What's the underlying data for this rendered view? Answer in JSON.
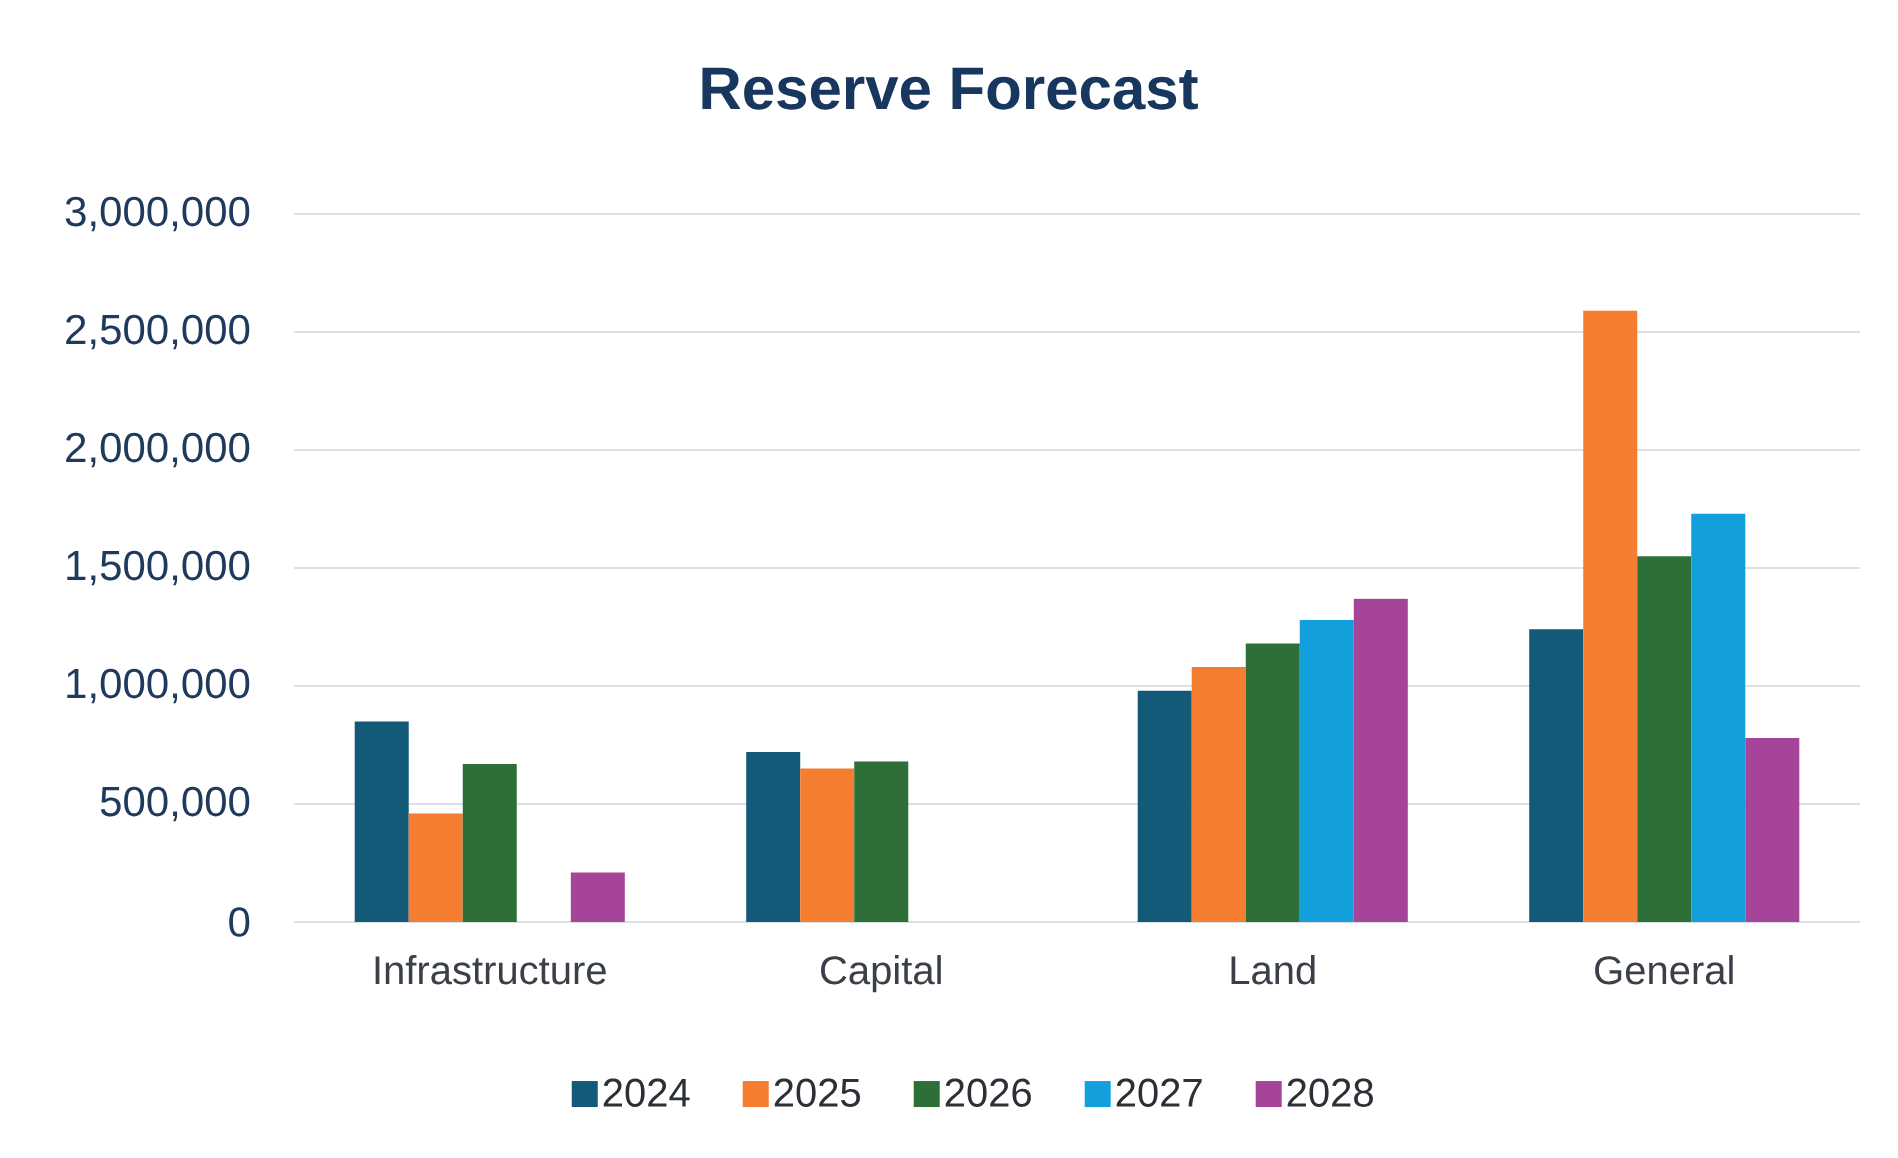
{
  "chart_data": {
    "type": "bar",
    "title": "Reserve Forecast",
    "categories": [
      "Infrastructure",
      "Capital",
      "Land",
      "General"
    ],
    "series": [
      {
        "name": "2024",
        "color": "#125a78",
        "values": [
          850000,
          720000,
          980000,
          1240000
        ]
      },
      {
        "name": "2025",
        "color": "#f47d30",
        "values": [
          460000,
          650000,
          1080000,
          2590000
        ]
      },
      {
        "name": "2026",
        "color": "#2e6e37",
        "values": [
          670000,
          680000,
          1180000,
          1550000
        ]
      },
      {
        "name": "2027",
        "color": "#139fdc",
        "values": [
          null,
          null,
          1280000,
          1730000
        ]
      },
      {
        "name": "2028",
        "color": "#a6449a",
        "values": [
          210000,
          null,
          1370000,
          780000
        ]
      }
    ],
    "ylim": [
      0,
      3000000
    ],
    "yticks": [
      0,
      {
        "value": 500000,
        "label": "500,000"
      },
      {
        "value": 1000000,
        "label": "1,000,000"
      },
      {
        "value": 1500000,
        "label": "1,500,000"
      },
      {
        "value": 2000000,
        "label": "2,000,000"
      },
      {
        "value": 2500000,
        "label": "2,500,000"
      },
      {
        "value": 3000000,
        "label": "3,000,000"
      }
    ],
    "grid": "y",
    "legend": "bottom"
  }
}
